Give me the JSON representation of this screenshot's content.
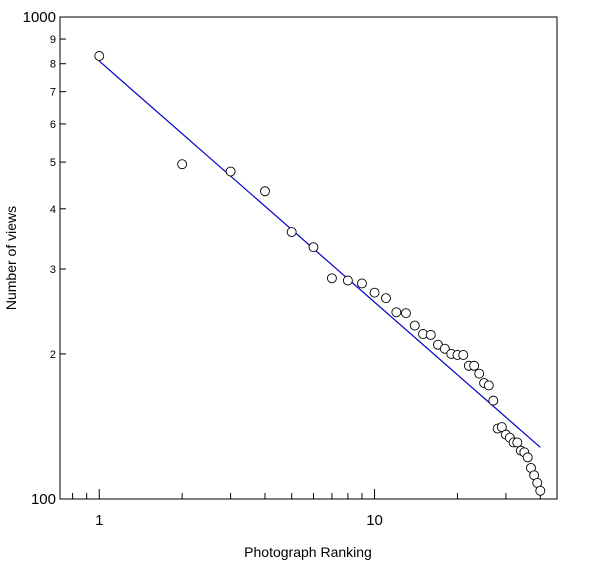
{
  "chart_data": {
    "type": "scatter",
    "title": "",
    "xlabel": "Photograph Ranking",
    "ylabel": "Number of views",
    "x_scale": "log",
    "y_scale": "log",
    "xlim": [
      0.72,
      46
    ],
    "ylim": [
      100,
      1000
    ],
    "x_ticks_major": [
      {
        "value": 1,
        "label": "1"
      },
      {
        "value": 10,
        "label": "10"
      }
    ],
    "x_ticks_minor": [
      0.8,
      0.9,
      2,
      3,
      4,
      5,
      6,
      7,
      8,
      9,
      20,
      30,
      40
    ],
    "y_ticks_major": [
      {
        "value": 100,
        "label": "100"
      },
      {
        "value": 1000,
        "label": "1000"
      }
    ],
    "y_ticks_minor": [
      {
        "value": 200,
        "label": "2"
      },
      {
        "value": 300,
        "label": "3"
      },
      {
        "value": 400,
        "label": "4"
      },
      {
        "value": 500,
        "label": "5"
      },
      {
        "value": 600,
        "label": "6"
      },
      {
        "value": 700,
        "label": "7"
      },
      {
        "value": 800,
        "label": "8"
      },
      {
        "value": 900,
        "label": "9"
      }
    ],
    "grid": false,
    "series": [
      {
        "type": "scatter",
        "marker": "open-circle",
        "color": "#000000",
        "points": [
          [
            1,
            830
          ],
          [
            2,
            495
          ],
          [
            3,
            478
          ],
          [
            4,
            435
          ],
          [
            5,
            358
          ],
          [
            6,
            333
          ],
          [
            7,
            287
          ],
          [
            8,
            284
          ],
          [
            9,
            280
          ],
          [
            10,
            268
          ],
          [
            11,
            261
          ],
          [
            12,
            244
          ],
          [
            13,
            243
          ],
          [
            14,
            229
          ],
          [
            15,
            220
          ],
          [
            16,
            219
          ],
          [
            17,
            209
          ],
          [
            18,
            205
          ],
          [
            19,
            200
          ],
          [
            20,
            199
          ],
          [
            21,
            199
          ],
          [
            22,
            189
          ],
          [
            23,
            189
          ],
          [
            24,
            182
          ],
          [
            25,
            174
          ],
          [
            26,
            172
          ],
          [
            27,
            160
          ],
          [
            28,
            140
          ],
          [
            29,
            141
          ],
          [
            30,
            136
          ],
          [
            31,
            134
          ],
          [
            32,
            131
          ],
          [
            33,
            131
          ],
          [
            34,
            126
          ],
          [
            35,
            125
          ],
          [
            36,
            122
          ],
          [
            37,
            116
          ],
          [
            38,
            112
          ],
          [
            39,
            108
          ],
          [
            40,
            104
          ]
        ]
      },
      {
        "type": "line",
        "color": "#0000cc",
        "points": [
          [
            1,
            810
          ],
          [
            40,
            128
          ]
        ]
      }
    ]
  }
}
